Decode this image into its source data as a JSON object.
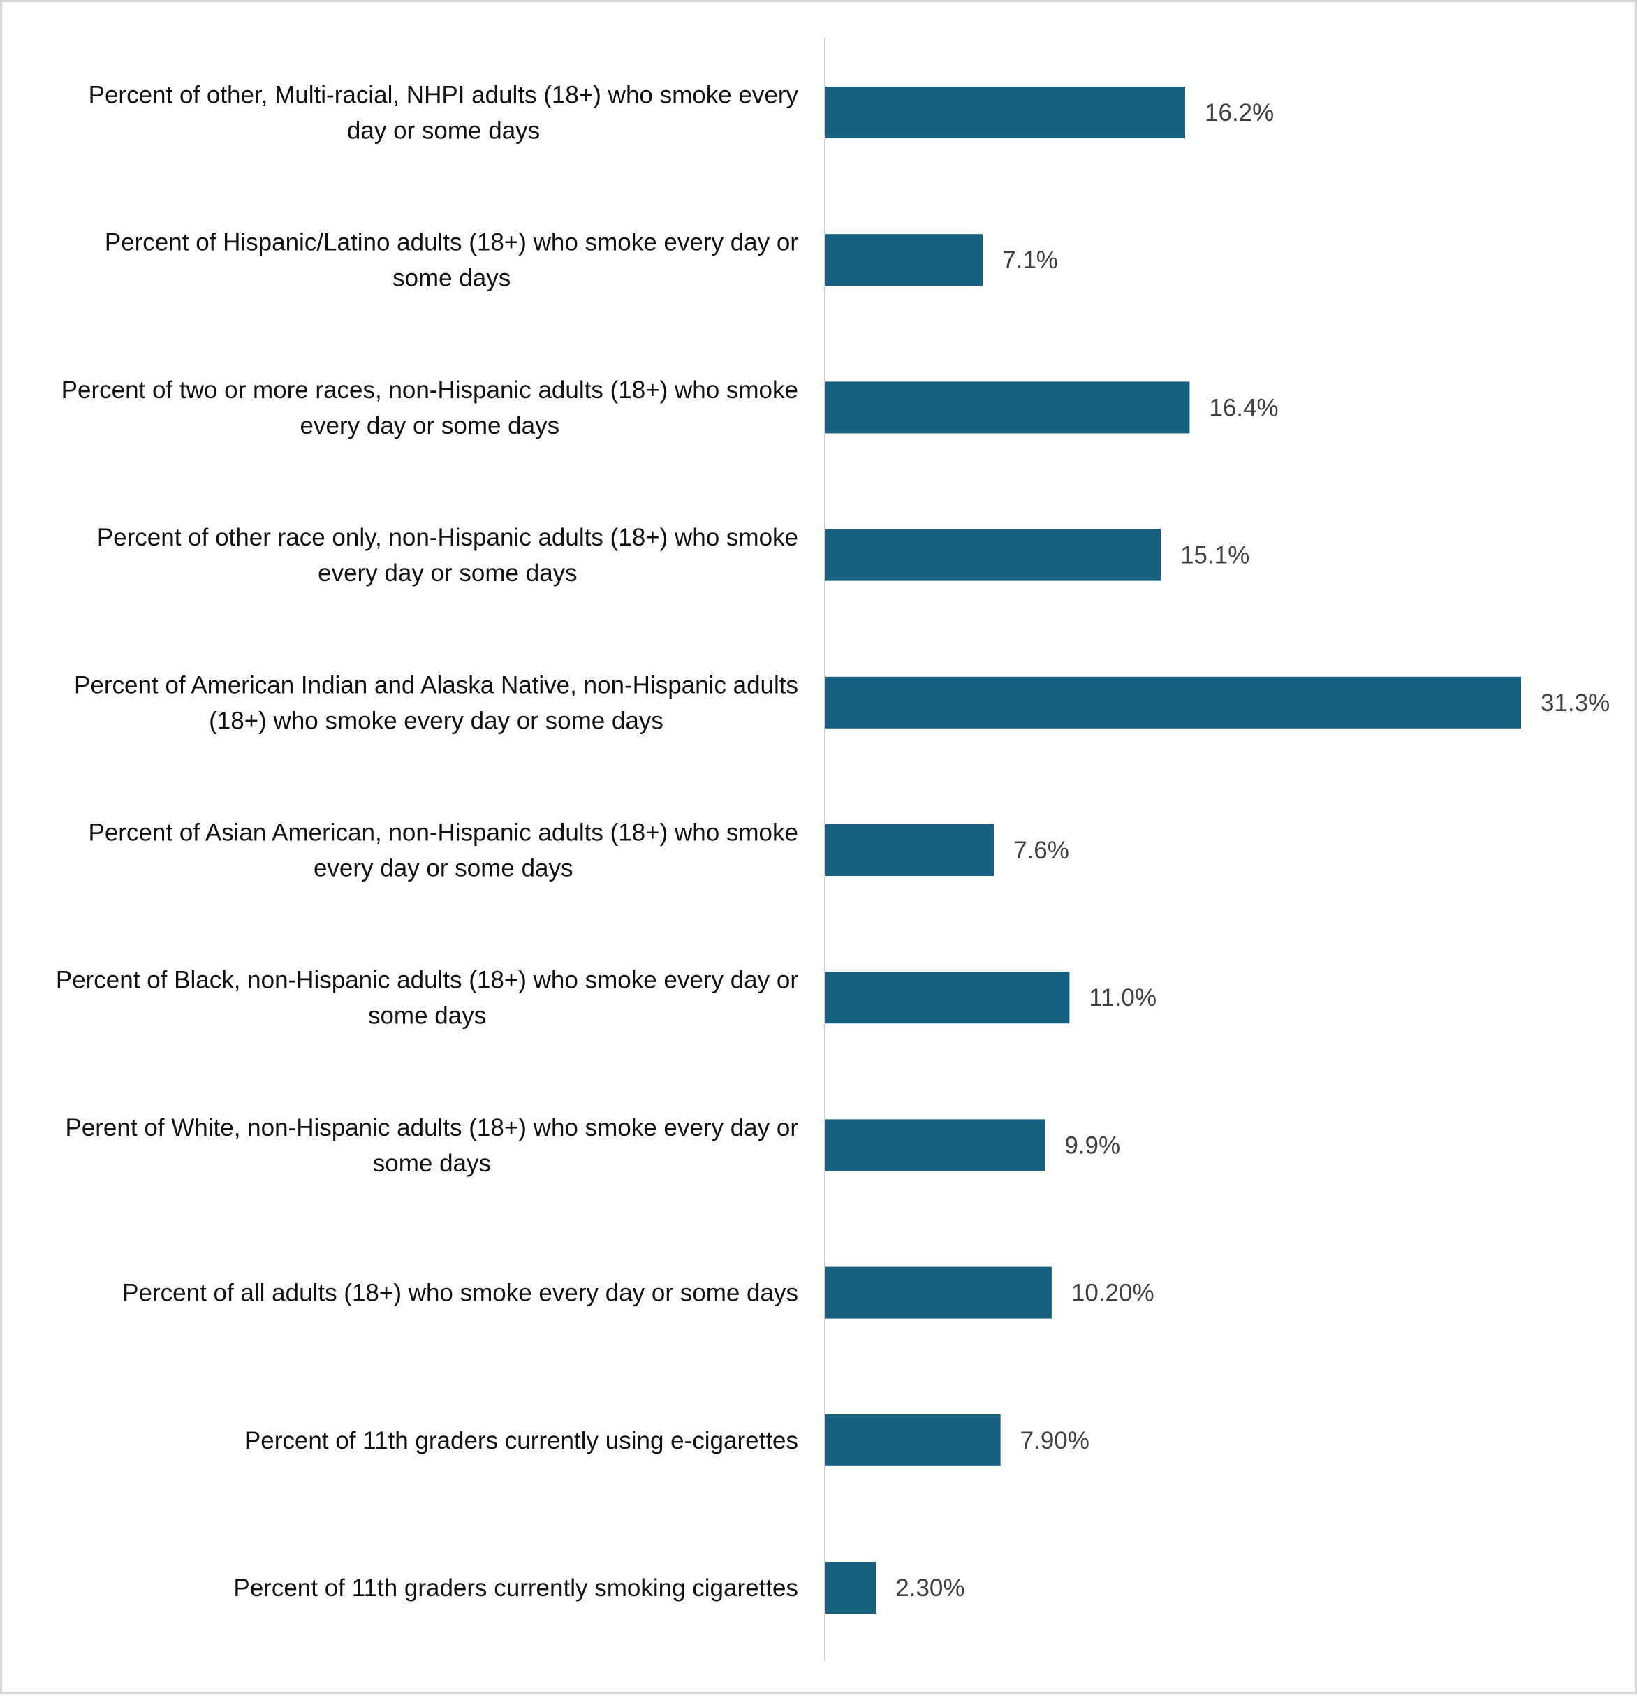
{
  "chart_data": {
    "type": "bar",
    "orientation": "horizontal",
    "title": "",
    "xlabel": "",
    "ylabel": "",
    "xlim": [
      0,
      31.3
    ],
    "grid": false,
    "legend": "none",
    "bar_color": "#17607f",
    "axis_color": "#d0d0d0",
    "categories": [
      {
        "lines": [
          "Percent of other, Multi-racial, NHPI adults (18+) who smoke every",
          "day or some days"
        ],
        "value": 16.2,
        "value_label": "16.2%"
      },
      {
        "lines": [
          "Percent of Hispanic/Latino adults (18+) who smoke every day or",
          "some days"
        ],
        "value": 7.1,
        "value_label": "7.1%"
      },
      {
        "lines": [
          "Percent of two or more races, non-Hispanic adults (18+) who smoke",
          "every day or some days"
        ],
        "value": 16.4,
        "value_label": "16.4%"
      },
      {
        "lines": [
          "Percent of other race only, non-Hispanic adults (18+) who smoke",
          "every day or some days"
        ],
        "value": 15.1,
        "value_label": "15.1%"
      },
      {
        "lines": [
          "Percent of American Indian and Alaska Native, non-Hispanic adults",
          "(18+) who smoke every day or some days"
        ],
        "value": 31.3,
        "value_label": "31.3%"
      },
      {
        "lines": [
          "Percent of Asian American, non-Hispanic adults (18+) who smoke",
          "every day or some days"
        ],
        "value": 7.6,
        "value_label": "7.6%"
      },
      {
        "lines": [
          "Percent of Black, non-Hispanic adults (18+) who smoke every day or",
          "some days"
        ],
        "value": 11.0,
        "value_label": "11.0%"
      },
      {
        "lines": [
          "Perent of White, non-Hispanic adults (18+) who smoke every day or",
          "some days"
        ],
        "value": 9.9,
        "value_label": "9.9%"
      },
      {
        "lines": [
          "Percent of all adults (18+) who smoke every day or some days"
        ],
        "value": 10.2,
        "value_label": "10.20%"
      },
      {
        "lines": [
          "Percent of 11th graders currently using e-cigarettes"
        ],
        "value": 7.9,
        "value_label": "7.90%"
      },
      {
        "lines": [
          "Percent of 11th graders currently smoking cigarettes"
        ],
        "value": 2.3,
        "value_label": "2.30%"
      }
    ]
  }
}
